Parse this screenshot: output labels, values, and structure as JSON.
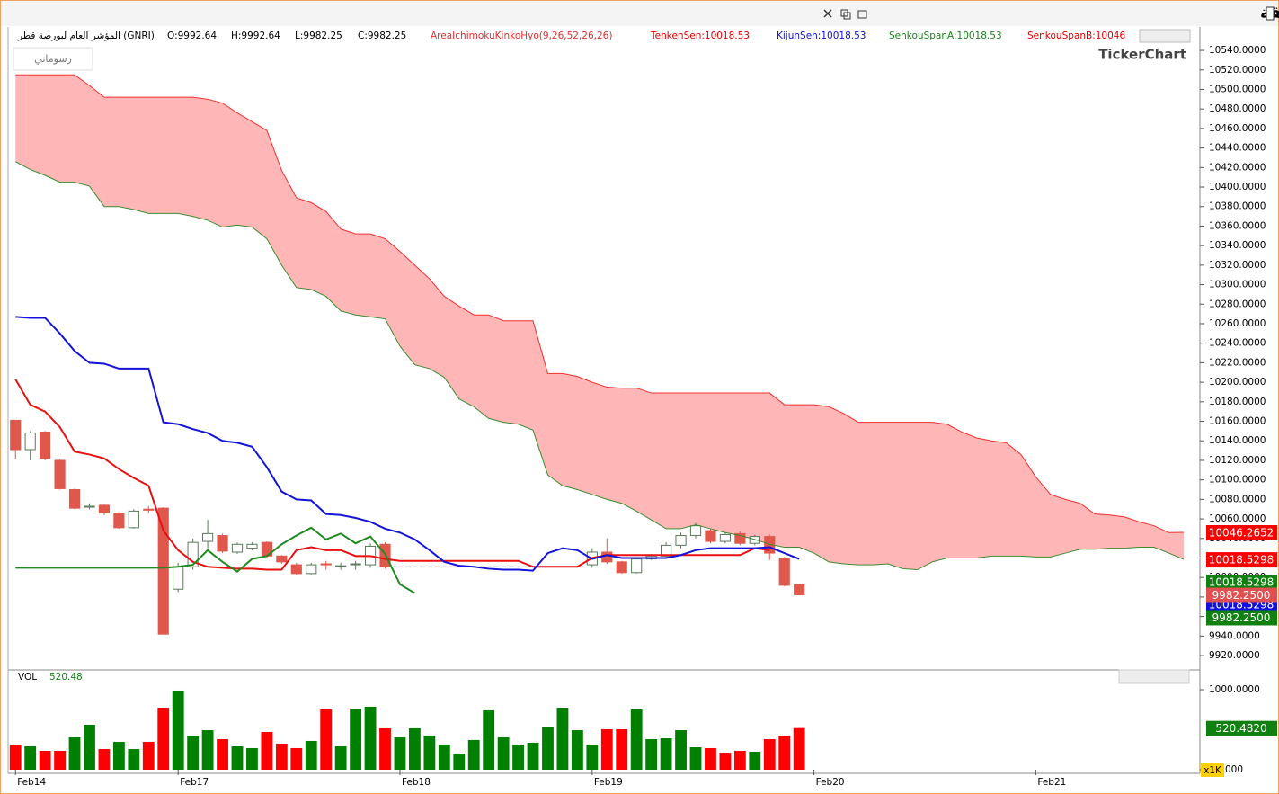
{
  "chart_data": {
    "type": "candlestick",
    "title": "المؤشر العام لبورصة قطر - خمس عشرة دقيقة",
    "symbol": "المؤشر العام لبورصة قطر (GNRI)",
    "ohlc_header": [
      "O:9992.64",
      "H:9992.64",
      "L:9982.25",
      "C:9982.25"
    ],
    "indicator_legend": [
      {
        "text": "AreaIchimokuKinkoHyo(9,26,52,26,26)",
        "color": "#e03030"
      },
      {
        "text": "TenkenSen:10018.53",
        "color": "#e00000"
      },
      {
        "text": "KijunSen:10018.53",
        "color": "#1010d0"
      },
      {
        "text": "SenkouSpanA:10018.53",
        "color": "#208020"
      },
      {
        "text": "SenkouSpanB:10046",
        "color": "#e00000"
      }
    ],
    "drawings_button": "رسوماتي",
    "logo": "TickerChart",
    "xlim": [
      -0.5,
      80.1
    ],
    "xticks": [
      {
        "value": 0,
        "label": "Feb14"
      },
      {
        "value": 11,
        "label": "Feb17"
      },
      {
        "value": 26,
        "label": "Feb18"
      },
      {
        "value": 39,
        "label": "Feb19"
      },
      {
        "value": 54,
        "label": "Feb20"
      },
      {
        "value": 69,
        "label": "Feb21"
      }
    ],
    "ylim": [
      9905.3,
      10564
    ],
    "yticks": [
      {
        "value": 9920,
        "label": "9920.0000"
      },
      {
        "value": 9940,
        "label": "9940.0000"
      },
      {
        "value": 9960,
        "label": "9960.0000"
      },
      {
        "value": 9980,
        "label": "9980.0000"
      },
      {
        "value": 10000,
        "label": "10000.0000"
      },
      {
        "value": 10020,
        "label": "10020.0000"
      },
      {
        "value": 10040,
        "label": "10040.0000"
      },
      {
        "value": 10060,
        "label": "10060.0000"
      },
      {
        "value": 10080,
        "label": "10080.0000"
      },
      {
        "value": 10100,
        "label": "10100.0000"
      },
      {
        "value": 10120,
        "label": "10120.0000"
      },
      {
        "value": 10140,
        "label": "10140.0000"
      },
      {
        "value": 10160,
        "label": "10160.0000"
      },
      {
        "value": 10180,
        "label": "10180.0000"
      },
      {
        "value": 10200,
        "label": "10200.0000"
      },
      {
        "value": 10220,
        "label": "10220.0000"
      },
      {
        "value": 10240,
        "label": "10240.0000"
      },
      {
        "value": 10260,
        "label": "10260.0000"
      },
      {
        "value": 10280,
        "label": "10280.0000"
      },
      {
        "value": 10300,
        "label": "10300.0000"
      },
      {
        "value": 10320,
        "label": "10320.0000"
      },
      {
        "value": 10340,
        "label": "10340.0000"
      },
      {
        "value": 10360,
        "label": "10360.0000"
      },
      {
        "value": 10380,
        "label": "10380.0000"
      },
      {
        "value": 10400,
        "label": "10400.0000"
      },
      {
        "value": 10420,
        "label": "10420.0000"
      },
      {
        "value": 10440,
        "label": "10440.0000"
      },
      {
        "value": 10460,
        "label": "10460.0000"
      },
      {
        "value": 10480,
        "label": "10480.0000"
      },
      {
        "value": 10500,
        "label": "10500.0000"
      },
      {
        "value": 10520,
        "label": "10520.0000"
      },
      {
        "value": 10540,
        "label": "10540.0000"
      }
    ],
    "up_color": "#ffffff",
    "up_border": "#5a7a5a",
    "down_color": "#e0584c",
    "flat_color": "#999999",
    "open": [
      10161,
      10131,
      10149,
      10120,
      10090,
      10072,
      10074,
      10066,
      10051,
      10070,
      10071,
      9988,
      10011,
      10037,
      10043,
      10026,
      10030,
      10036,
      10022,
      10013,
      10004,
      10014,
      10012,
      10014,
      10013,
      10034,
      10011,
      10011,
      10011,
      10011,
      10011,
      10011,
      10011,
      10011,
      10011,
      10011,
      10011,
      10011,
      10011,
      10013,
      10026,
      10016,
      10005,
      10019,
      10022,
      10033,
      10043,
      10048,
      10037,
      10045,
      10035,
      10042,
      10020,
      9992.64
    ],
    "high": [
      10161,
      10150,
      10150,
      10121,
      10091,
      10076,
      10075,
      10067,
      10070,
      10073,
      10072,
      10015,
      10040,
      10059,
      10045,
      10036,
      10036,
      10037,
      10023,
      10015,
      10015,
      10017,
      10015,
      10017,
      10035,
      10036,
      10011,
      10011,
      10011,
      10011,
      10011,
      10011,
      10011,
      10011,
      10011,
      10011,
      10011,
      10011,
      10011,
      10030,
      10040,
      10017,
      10021,
      10024,
      10036,
      10046,
      10056,
      10050,
      10046,
      10047,
      10044,
      10044,
      10021,
      9992.64
    ],
    "low": [
      10121,
      10120,
      10120,
      10090,
      10070,
      10070,
      10064,
      10050,
      10050,
      10066,
      9942,
      9985,
      10008,
      10030,
      10025,
      10024,
      10028,
      10020,
      10014,
      10002,
      10002,
      10008,
      10008,
      10008,
      10010,
      10009,
      10011,
      10011,
      10011,
      10011,
      10011,
      10011,
      10011,
      10011,
      10011,
      10011,
      10011,
      10011,
      10011,
      10010,
      10014,
      10004,
      10004,
      10018,
      10020,
      10030,
      10040,
      10035,
      10035,
      10033,
      10033,
      10018,
      9991,
      9982.25
    ],
    "close": [
      10131,
      10148,
      10122,
      10091,
      10071,
      10073,
      10066,
      10051,
      10068,
      10069,
      9942,
      10011,
      10036,
      10045,
      10027,
      10034,
      10034,
      10022,
      10016,
      10004,
      10013,
      10013,
      10012,
      10014,
      10032,
      10011,
      10011,
      10011,
      10011,
      10011,
      10011,
      10011,
      10011,
      10011,
      10011,
      10011,
      10011,
      10011,
      10011,
      10026,
      10016,
      10005,
      10019,
      10022,
      10033,
      10043,
      10053,
      10037,
      10044,
      10035,
      10042,
      10025,
      9992,
      9982.25
    ],
    "cloud_color": "#ffb6b6",
    "series": [
      {
        "color": "#e81010",
        "width": 2,
        "values": [
          10203,
          10177,
          10170,
          10154,
          10129,
          10126,
          10122,
          10111,
          10102,
          10094,
          10048,
          10028,
          10016,
          10011,
          10010,
          10009,
          10009,
          10008,
          10008,
          10028,
          10031,
          10028,
          10028,
          10022,
          10022,
          10019,
          10017,
          10017,
          10017,
          10017,
          10017,
          10017,
          10017,
          10017,
          10017,
          10011,
          10011,
          10011,
          10011,
          10020,
          10023,
          10023,
          10023,
          10023,
          10023,
          10023,
          10023,
          10023,
          10023,
          10023,
          10030,
          10028,
          null,
          null,
          null,
          null,
          null,
          null,
          null,
          null,
          null,
          null,
          null,
          null,
          null,
          null,
          null,
          null,
          null,
          null,
          null,
          null,
          null,
          null,
          null,
          null,
          null,
          null,
          null,
          null
        ]
      },
      {
        "color": "#1414d8",
        "width": 2,
        "values": [
          10267,
          10266,
          10266,
          10250,
          10232,
          10220,
          10219,
          10214,
          10214,
          10214,
          10159,
          10157,
          10152,
          10148,
          10140,
          10138,
          10134,
          10113,
          10088,
          10080,
          10079,
          10065,
          10064,
          10061,
          10057,
          10050,
          10046,
          10039,
          10028,
          10016,
          10012,
          10011,
          10009,
          10008,
          10008,
          10007,
          10025,
          10030,
          10028,
          10019,
          10023,
          10020,
          10020,
          10020,
          10020,
          10023,
          10028,
          10030,
          10030,
          10030,
          10030,
          10031,
          10025,
          10019,
          null,
          null,
          null,
          null,
          null,
          null,
          null,
          null,
          null,
          null,
          null,
          null,
          null,
          null,
          null,
          null,
          null,
          null,
          null,
          null,
          null,
          null
        ]
      },
      {
        "color": "#f03030",
        "width": 1,
        "values": [
          10515,
          10515,
          10515,
          10515,
          10515,
          10504,
          10492,
          10492,
          10492,
          10492,
          10492,
          10492,
          10492,
          10490,
          10486,
          10476,
          10467,
          10458,
          10417,
          10389,
          10384,
          10375,
          10357,
          10352,
          10352,
          10347,
          10334,
          10320,
          10306,
          10288,
          10278,
          10269,
          10269,
          10263,
          10263,
          10263,
          10209,
          10209,
          10206,
          10200,
          10195,
          10194,
          10194,
          10189,
          10189,
          10189,
          10189,
          10189,
          10189,
          10189,
          10189,
          10189,
          10177,
          10177,
          10177,
          10175,
          10168,
          10159,
          10159,
          10159,
          10159,
          10159,
          10159,
          10157,
          10149,
          10143,
          10140,
          10138,
          10126,
          10103,
          10085,
          10080,
          10076,
          10065,
          10064,
          10062,
          10057,
          10053,
          10046,
          10046.27
        ]
      },
      {
        "color": "#3d8a30",
        "width": 1,
        "values": [
          10426,
          10418,
          10412,
          10405,
          10405,
          10401,
          10380,
          10380,
          10377,
          10373,
          10373,
          10373,
          10370,
          10366,
          10359,
          10361,
          10359,
          10347,
          10320,
          10297,
          10295,
          10288,
          10273,
          10269,
          10267,
          10265,
          10237,
          10218,
          10214,
          10205,
          10183,
          10175,
          10163,
          10159,
          10157,
          10151,
          10105,
          10094,
          10090,
          10085,
          10080,
          10076,
          10068,
          10059,
          10050,
          10050,
          10054,
          10050,
          10046,
          10043,
          10039,
          10034,
          10031,
          10031,
          10025,
          10016,
          10014,
          10013,
          10013,
          10014,
          10009,
          10008,
          10016,
          10020,
          10020,
          10020,
          10022,
          10022,
          10022,
          10021,
          10021,
          10025,
          10029,
          10029,
          10030,
          10030,
          10031,
          10031,
          10025,
          10018.53
        ]
      },
      {
        "color": "#208a20",
        "width": 2,
        "values": [
          10010,
          10010,
          10010,
          10010,
          10010,
          10010,
          10010,
          10010,
          10010,
          10010,
          10010,
          10011,
          10013,
          10028,
          10016,
          10006,
          10019,
          10022,
          10034,
          10043,
          10051,
          10039,
          10045,
          10035,
          10042,
          10024,
          9993,
          9984,
          null,
          null,
          null,
          null,
          null,
          null,
          null,
          null,
          null,
          null,
          null,
          null,
          null,
          null,
          null,
          null,
          null,
          null,
          null,
          null,
          null,
          null,
          null,
          null,
          null,
          null,
          null,
          null,
          null,
          null,
          null,
          null,
          null,
          null,
          null,
          null,
          null,
          null,
          null,
          null,
          null,
          null,
          null,
          null,
          null,
          null,
          null,
          null,
          null,
          null,
          null,
          null
        ]
      }
    ],
    "price_labels": [
      {
        "value": 10046.2652,
        "label": "10046.2652",
        "color": "#ff0000"
      },
      {
        "value": 10018.5298,
        "label": "10018.5298",
        "color": "#ff0000"
      },
      {
        "value": 10018.5298,
        "label": "10018.5298",
        "color": "#108010"
      },
      {
        "value": 10018.5298,
        "label": "10018.5298",
        "color": "#1010e0"
      },
      {
        "value": 9982.25,
        "label": "9982.2500",
        "color": "#e05050"
      },
      {
        "value": 9982.25,
        "label": "9982.2500",
        "color": "#108010"
      }
    ],
    "volume": {
      "title": "VOL",
      "last": "520.48",
      "last_color": "#108010",
      "ylim": [
        -45,
        1191
      ],
      "yticks": [
        {
          "value": 1000,
          "label": "1000.0000"
        },
        {
          "value": 0,
          "label": "000"
        }
      ],
      "unit_label": "x1K",
      "last_label": {
        "value": 520.48,
        "label": "520.4820",
        "color": "#108010"
      },
      "values": [
        315,
        292,
        236,
        236,
        404,
        562,
        258,
        348,
        258,
        348,
        775,
        989,
        416,
        494,
        382,
        292,
        270,
        472,
        326,
        270,
        360,
        753,
        292,
        764,
        787,
        517,
        404,
        517,
        427,
        315,
        202,
        371,
        742,
        404,
        315,
        337,
        539,
        775,
        494,
        315,
        506,
        506,
        753,
        382,
        393,
        494,
        281,
        270,
        213,
        236,
        225,
        382,
        427,
        520.48
      ],
      "colors": [
        "#ff0000",
        "#008000",
        "#ff0000",
        "#ff0000",
        "#008000",
        "#008000",
        "#ff0000",
        "#008000",
        "#008000",
        "#ff0000",
        "#ff0000",
        "#008000",
        "#008000",
        "#008000",
        "#ff0000",
        "#008000",
        "#008000",
        "#ff0000",
        "#ff0000",
        "#ff0000",
        "#008000",
        "#ff0000",
        "#008000",
        "#008000",
        "#008000",
        "#ff0000",
        "#008000",
        "#008000",
        "#008000",
        "#008000",
        "#008000",
        "#008000",
        "#008000",
        "#008000",
        "#008000",
        "#008000",
        "#008000",
        "#008000",
        "#008000",
        "#008000",
        "#ff0000",
        "#ff0000",
        "#008000",
        "#008000",
        "#008000",
        "#008000",
        "#008000",
        "#ff0000",
        "#ff0000",
        "#ff0000",
        "#008000",
        "#ff0000",
        "#ff0000",
        "#ff0000"
      ]
    }
  }
}
